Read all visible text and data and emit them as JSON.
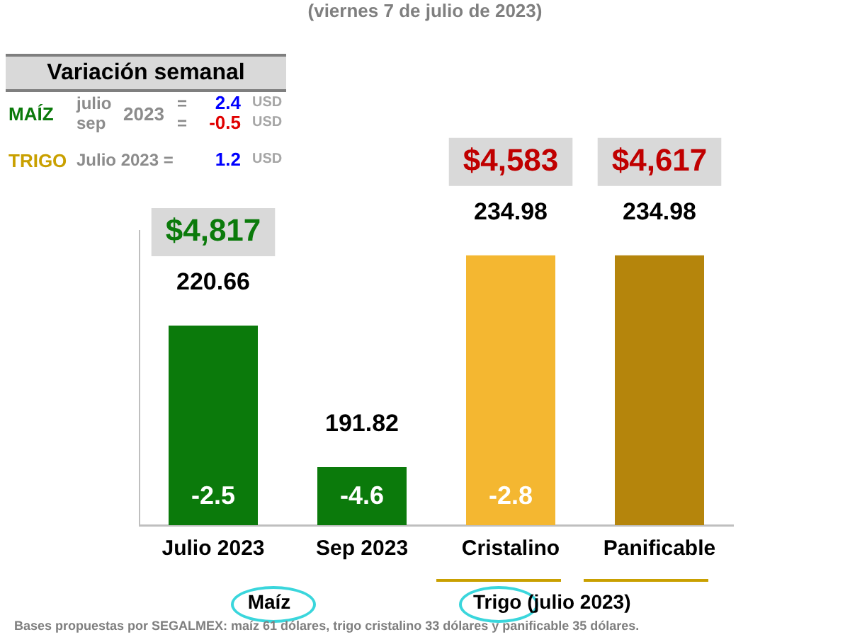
{
  "chart_data": {
    "type": "bar",
    "title": "(viernes 7 de julio de 2023)",
    "categories": [
      "Julio 2023",
      "Sep 2023",
      "Cristalino",
      "Panificable"
    ],
    "values": [
      220.66,
      191.82,
      234.98,
      234.98
    ],
    "colors": [
      "#0b7a0b",
      "#0b7a0b",
      "#f4b731",
      "#b5850c"
    ],
    "ylim": [
      180,
      240
    ],
    "data_labels": true,
    "tick_labels": "x",
    "grid": false,
    "legend": false,
    "annotations": [
      "Variación semanal",
      "MAÍZ",
      "julio",
      "sep",
      "2023",
      "=",
      "=",
      "2.4",
      "-0.5",
      "USD",
      "USD",
      "TRIGO",
      "Julio 2023 =",
      "1.2",
      "USD",
      "$4,817",
      "$4,583",
      "$4,617",
      "-2.5",
      "-4.6",
      "-2.8",
      "Maíz",
      "Trigo (julio 2023)",
      "Bases propuestas por SEGALMEX: maíz 61 dólares, trigo cristalino 33 dólares y panificable 35 dólares."
    ]
  }
}
